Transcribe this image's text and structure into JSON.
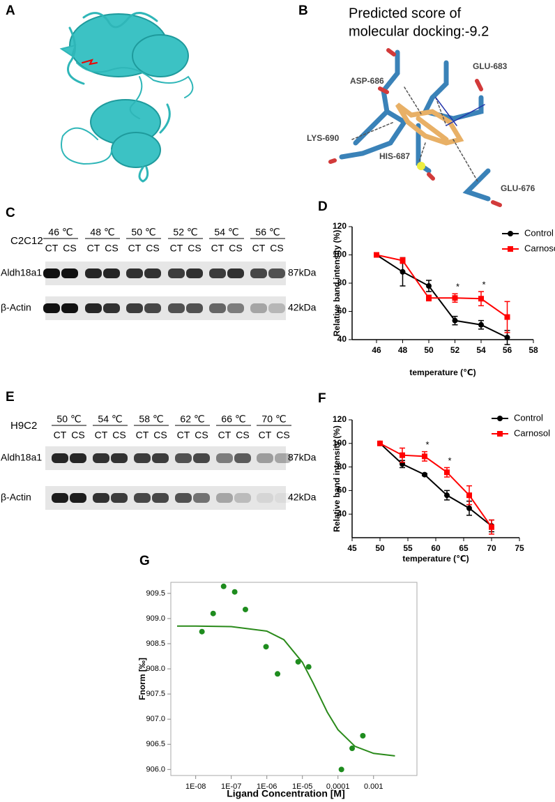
{
  "figure_a": {
    "label": "A"
  },
  "figure_b": {
    "label": "B",
    "title_lines": [
      "Predicted score of",
      "molecular docking:-9.2"
    ],
    "residues": [
      "GLU-683",
      "ASP-686",
      "LYS-690",
      "HIS-687",
      "GLU-676"
    ]
  },
  "blot_c": {
    "label": "C",
    "cell_line": "C2C12",
    "temperatures": [
      "46 ℃",
      "48 ℃",
      "50 ℃",
      "52 ℃",
      "54 ℃",
      "56 ℃"
    ],
    "lanes": [
      "CT",
      "CS"
    ],
    "rows": [
      {
        "protein": "Aldh18a1",
        "size": "87kDa"
      },
      {
        "protein": "β-Actin",
        "size": "42kDa"
      }
    ]
  },
  "blot_e": {
    "label": "E",
    "cell_line": "H9C2",
    "temperatures": [
      "50 ℃",
      "54 ℃",
      "58 ℃",
      "62 ℃",
      "66 ℃",
      "70 ℃"
    ],
    "lanes": [
      "CT",
      "CS"
    ],
    "rows": [
      {
        "protein": "Aldh18a1",
        "size": "87kDa"
      },
      {
        "protein": "β-Actin",
        "size": "42kDa"
      }
    ]
  },
  "chart_data": [
    {
      "panel": "D",
      "type": "line",
      "x_label": "temperature (℃)",
      "y_label": "Relative band intensity (%)",
      "x": [
        46,
        48,
        50,
        52,
        54,
        56
      ],
      "xlim": [
        46,
        58
      ],
      "xticks": [
        46,
        48,
        50,
        52,
        54,
        56,
        58
      ],
      "ylim": [
        40,
        120
      ],
      "yticks": [
        40,
        60,
        80,
        100,
        120
      ],
      "series": [
        {
          "name": "Control",
          "color": "#000000",
          "marker": "circle",
          "values": [
            100,
            88,
            78,
            53.5,
            50.5,
            41.5
          ],
          "errors": [
            0,
            10,
            4,
            3,
            3,
            5
          ]
        },
        {
          "name": "Carnosol",
          "color": "#ff0000",
          "marker": "square",
          "values": [
            100,
            96,
            69.5,
            69.5,
            69,
            56
          ],
          "errors": [
            0,
            2,
            2,
            3,
            5,
            11
          ]
        }
      ],
      "annotations": [
        {
          "text": "*",
          "x": 52
        },
        {
          "text": "*",
          "x": 54
        }
      ]
    },
    {
      "panel": "F",
      "type": "line",
      "x_label": "temperature (℃)",
      "y_label": "Relative band intensity (%)",
      "x": [
        50,
        54,
        58,
        62,
        66,
        70
      ],
      "xlim": [
        45,
        75
      ],
      "xticks": [
        45,
        50,
        55,
        60,
        65,
        70,
        75
      ],
      "ylim": [
        20,
        120
      ],
      "yticks": [
        40,
        60,
        80,
        100,
        120
      ],
      "series": [
        {
          "name": "Control",
          "color": "#000000",
          "marker": "circle",
          "values": [
            100,
            82.5,
            73.5,
            56,
            45,
            30
          ],
          "errors": [
            0,
            3,
            1,
            4,
            6,
            5
          ]
        },
        {
          "name": "Carnosol",
          "color": "#ff0000",
          "marker": "square",
          "values": [
            100,
            90,
            89,
            75.5,
            56,
            29
          ],
          "errors": [
            0,
            6,
            4,
            4,
            8,
            6
          ]
        }
      ],
      "annotations": [
        {
          "text": "*",
          "x": 58
        },
        {
          "text": "*",
          "x": 62
        }
      ]
    },
    {
      "panel": "G",
      "type": "scatter",
      "x_label": "Ligand Concentration [M]",
      "y_label": "Fnorm [‰]",
      "xscale": "log",
      "xlim": [
        2e-09,
        0.0166
      ],
      "xticks": [
        {
          "value": 1e-08,
          "label": "1E-08"
        },
        {
          "value": 1e-07,
          "label": "1E-07"
        },
        {
          "value": 1e-06,
          "label": "1E-06"
        },
        {
          "value": 1e-05,
          "label": "1E-05"
        },
        0.0001,
        0.001
      ],
      "ylim": [
        905.88,
        909.72
      ],
      "yticks": [
        {
          "value": 906,
          "label": "906.0"
        },
        906.5,
        {
          "value": 907,
          "label": "907.0"
        },
        907.5,
        {
          "value": 908,
          "label": "908.0"
        },
        908.5,
        {
          "value": 909,
          "label": "909.0"
        },
        909.5
      ],
      "series": [
        {
          "style": "points",
          "color": "#1e8c1e",
          "x": [
            1.5e-08,
            3.1e-08,
            6.1e-08,
            1.25e-07,
            2.5e-07,
            9.5e-07,
            2e-06,
            7.6e-06,
            1.5e-05,
            0.000125,
            0.00025,
            0.0005
          ],
          "values": [
            908.74,
            909.1,
            909.64,
            909.53,
            909.18,
            908.44,
            907.9,
            908.14,
            908.04,
            906.0,
            906.42,
            906.67
          ]
        },
        {
          "style": "line",
          "color": "#2a8a1a",
          "x": [
            3e-09,
            1e-08,
            1e-07,
            1e-06,
            3e-06,
            1e-05,
            2e-05,
            5e-05,
            0.0001,
            0.0003,
            0.001,
            0.004
          ],
          "values": [
            908.85,
            908.85,
            908.84,
            908.75,
            908.58,
            908.13,
            907.72,
            907.14,
            906.79,
            906.46,
            906.32,
            906.27
          ]
        }
      ]
    }
  ]
}
